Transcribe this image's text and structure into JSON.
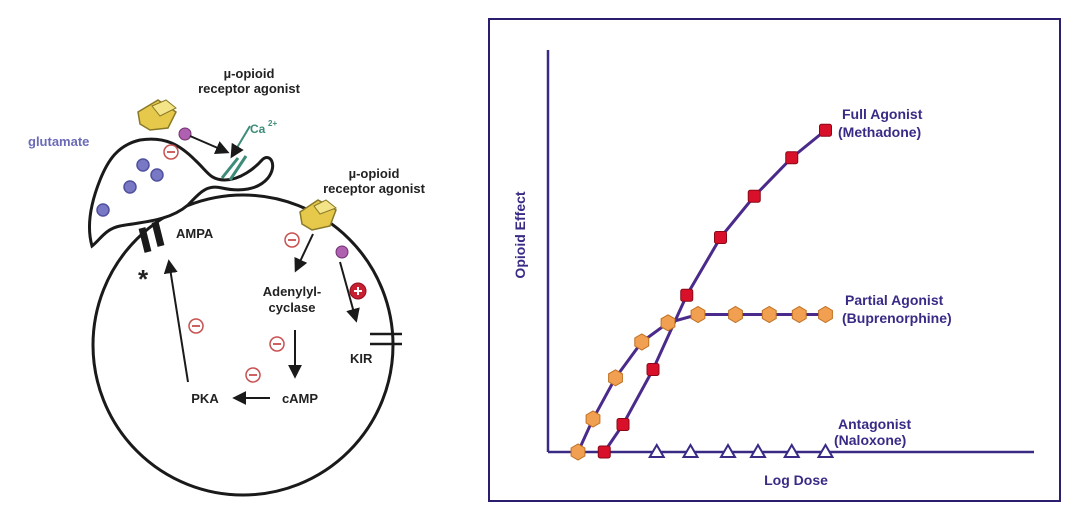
{
  "diagram": {
    "label_agonist_top_1": "µ-opioid",
    "label_agonist_top_2": "receptor agonist",
    "label_agonist_right_1": "µ-opioid",
    "label_agonist_right_2": "receptor agonist",
    "label_glutamate": "glutamate",
    "label_calcium": "Ca",
    "label_calcium_sup": "2+",
    "label_ampa": "AMPA",
    "label_asterisk": "*",
    "label_adenylyl_1": "Adenylyl-",
    "label_adenylyl_2": "cyclase",
    "label_camp": "cAMP",
    "label_pka": "PKA",
    "label_kir": "KIR",
    "colors": {
      "ink": "#1a1a1a",
      "glutamate": "#6a6ab8",
      "calcium": "#3c8c78",
      "inhibit": "#c85050",
      "receptor": "#e6c84a"
    }
  },
  "chart": {
    "xlabel": "Log Dose",
    "ylabel": "Opioid Effect",
    "colors": {
      "frame": "#2a1f6e",
      "axis": "#3a2a86",
      "line": "#4a2a8a",
      "full": "#d8102a",
      "partial": "#f0a050",
      "antagonist": "#3a2a86"
    }
  },
  "chart_data": {
    "type": "line",
    "xlabel": "Log Dose",
    "ylabel": "Opioid Effect",
    "ticks": "none",
    "series": [
      {
        "name_line1": "Full Agonist",
        "name_line2": "(Methadone)",
        "marker": "square",
        "x": [
          1.5,
          2.0,
          2.8,
          3.7,
          4.6,
          5.5,
          6.5,
          7.4
        ],
        "y": [
          0,
          10,
          30,
          57,
          78,
          93,
          107,
          117
        ]
      },
      {
        "name_line1": "Partial Agonist",
        "name_line2": "(Buprenorphine)",
        "marker": "hexagon",
        "x": [
          0.8,
          1.2,
          1.8,
          2.5,
          3.2,
          4.0,
          5.0,
          5.9,
          6.7,
          7.4
        ],
        "y": [
          0,
          12,
          27,
          40,
          47,
          50,
          50,
          50,
          50,
          50
        ]
      },
      {
        "name_line1": "Antagonist",
        "name_line2": "(Naloxone)",
        "marker": "triangle",
        "x": [
          2.9,
          3.8,
          4.8,
          5.6,
          6.5,
          7.4
        ],
        "y": [
          0,
          0,
          0,
          0,
          0,
          0
        ]
      }
    ]
  }
}
